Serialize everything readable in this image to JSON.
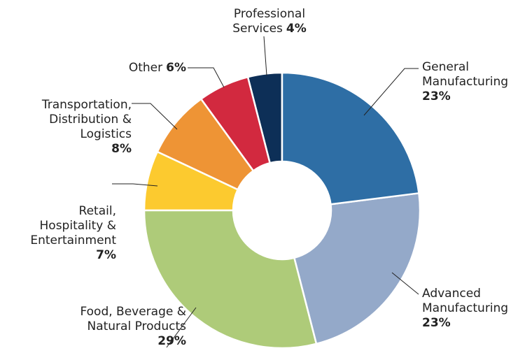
{
  "chart_data": {
    "type": "donut",
    "categories": [
      "General Manufacturing",
      "Advanced Manufacturing",
      "Food, Beverage & Natural Products",
      "Retail, Hospitality & Entertainment",
      "Transportation, Distribution & Logistics",
      "Other",
      "Professional Services"
    ],
    "values": [
      23,
      23,
      29,
      7,
      8,
      6,
      4
    ],
    "value_labels": [
      "23%",
      "23%",
      "29%",
      "7%",
      "8%",
      "6%",
      "4%"
    ],
    "colors": [
      "#2e6ea5",
      "#94a9c9",
      "#aecb79",
      "#fcca2f",
      "#ee9435",
      "#d2293f",
      "#0d2f57"
    ]
  }
}
